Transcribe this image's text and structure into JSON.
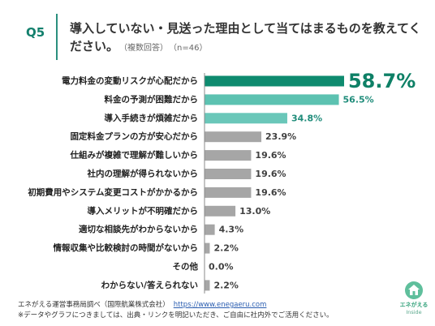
{
  "header": {
    "question_no": "Q5",
    "title_lines": [
      "導入していない・見送った理由として当てはまるものを教えてく",
      "ださい。"
    ],
    "answer_type": "（複数回答）",
    "sample_size": "（n=46）"
  },
  "chart_data": {
    "type": "bar",
    "orientation": "horizontal",
    "categories": [
      "電力料金の変動リスクが心配だから",
      "料金の予測が困難だから",
      "導入手続きが煩雑だから",
      "固定料金プランの方が安心だから",
      "仕組みが複雑で理解が難しいから",
      "社内の理解が得られないから",
      "初期費用やシステム変更コストがかかるから",
      "導入メリットが不明確だから",
      "適切な相談先がわからないから",
      "情報収集や比較検討の時間がないから",
      "その他",
      "わからない/答えられない"
    ],
    "values": [
      58.7,
      56.5,
      34.8,
      23.9,
      19.6,
      19.6,
      19.6,
      13.0,
      4.3,
      2.2,
      0.0,
      2.2
    ],
    "value_labels": [
      "58.7%",
      "56.5%",
      "34.8%",
      "23.9%",
      "19.6%",
      "19.6%",
      "19.6%",
      "13.0%",
      "4.3%",
      "2.2%",
      "0.0%",
      "2.2%"
    ],
    "bar_colors": [
      "#0e8b6f",
      "#5cc2b1",
      "#6ac7b9",
      "#a6a6a6",
      "#a6a6a6",
      "#a6a6a6",
      "#a6a6a6",
      "#a6a6a6",
      "#a6a6a6",
      "#a6a6a6",
      "#a6a6a6",
      "#a6a6a6"
    ],
    "label_colors": [
      "#0e8066",
      "#1f8c7a",
      "#1f8c7a",
      "#404040",
      "#404040",
      "#404040",
      "#404040",
      "#404040",
      "#404040",
      "#404040",
      "#404040",
      "#404040"
    ],
    "grid": false
  },
  "footer": {
    "source": "エネがえる運営事務局調べ（国際航業株式会社）",
    "url": "https://www.enegaeru.com",
    "note": "※データやグラフにつきましては、出典・リンクを明記いただき、ご自由に社内外でご活用ください。"
  },
  "logo": {
    "name": "エネがえる",
    "tagline": "Inside",
    "icon": "leaf-house-icon",
    "color": "#5fbf9c"
  },
  "theme": {
    "accent": "#13806d"
  }
}
